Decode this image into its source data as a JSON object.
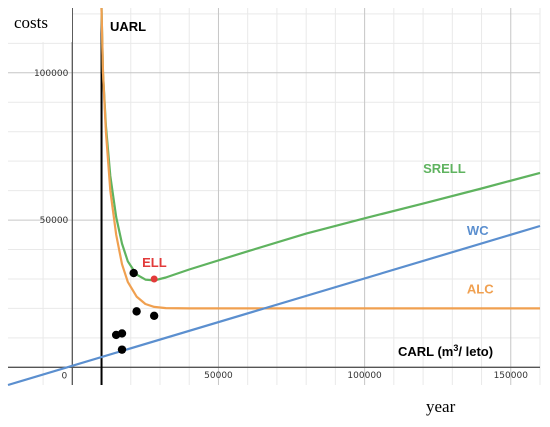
{
  "chart_data": {
    "type": "line",
    "title": "",
    "ylabel": "costs",
    "xlabel": "year",
    "x_axis_annotation_base": "CARL (m",
    "x_axis_annotation_sup": "3",
    "x_axis_annotation_tail": "/ leto)",
    "xlim": [
      -22000,
      160000
    ],
    "ylim": [
      -6000,
      122000
    ],
    "grid": true,
    "x_ticks": [
      {
        "value": 0,
        "label": "0"
      },
      {
        "value": 50000,
        "label": "50000"
      },
      {
        "value": 100000,
        "label": "100000"
      },
      {
        "value": 150000,
        "label": "150000"
      }
    ],
    "y_ticks": [
      {
        "value": 50000,
        "label": "50000"
      },
      {
        "value": 100000,
        "label": "100000"
      }
    ],
    "vertical_marker": {
      "name": "UARL",
      "x": 10000,
      "color": "#000000"
    },
    "series": [
      {
        "name": "SRELL",
        "color": "#5fb35f",
        "points": [
          [
            10000,
            122000
          ],
          [
            10500,
            100000
          ],
          [
            11500,
            82000
          ],
          [
            13000,
            65000
          ],
          [
            15000,
            51000
          ],
          [
            17000,
            42000
          ],
          [
            19000,
            36000
          ],
          [
            22000,
            31500
          ],
          [
            25000,
            29800
          ],
          [
            28000,
            29500
          ],
          [
            32000,
            30500
          ],
          [
            40000,
            33200
          ],
          [
            60000,
            39400
          ],
          [
            80000,
            45400
          ],
          [
            100000,
            50600
          ],
          [
            120000,
            55600
          ],
          [
            140000,
            60700
          ],
          [
            160000,
            66000
          ]
        ]
      },
      {
        "name": "ALC",
        "color": "#f0a050",
        "points": [
          [
            10000,
            122000
          ],
          [
            10500,
            100000
          ],
          [
            11500,
            80000
          ],
          [
            13000,
            60000
          ],
          [
            15000,
            45000
          ],
          [
            17000,
            35000
          ],
          [
            19000,
            29000
          ],
          [
            22000,
            24000
          ],
          [
            25000,
            21500
          ],
          [
            28000,
            20500
          ],
          [
            32000,
            20100
          ],
          [
            40000,
            20000
          ],
          [
            60000,
            20000
          ],
          [
            100000,
            20000
          ],
          [
            160000,
            20000
          ]
        ]
      },
      {
        "name": "WC",
        "color": "#5b8fcf",
        "points": [
          [
            -22000,
            -6000
          ],
          [
            160000,
            48000
          ]
        ]
      }
    ],
    "highlight_point": {
      "name": "ELL",
      "x": 28000,
      "y": 30000,
      "color": "#e23a3a"
    },
    "scatter_points": [
      [
        21000,
        32000
      ],
      [
        22000,
        19000
      ],
      [
        28000,
        17500
      ],
      [
        15000,
        11000
      ],
      [
        17000,
        11500
      ],
      [
        17000,
        6000
      ]
    ],
    "scatter_color": "#000000"
  }
}
